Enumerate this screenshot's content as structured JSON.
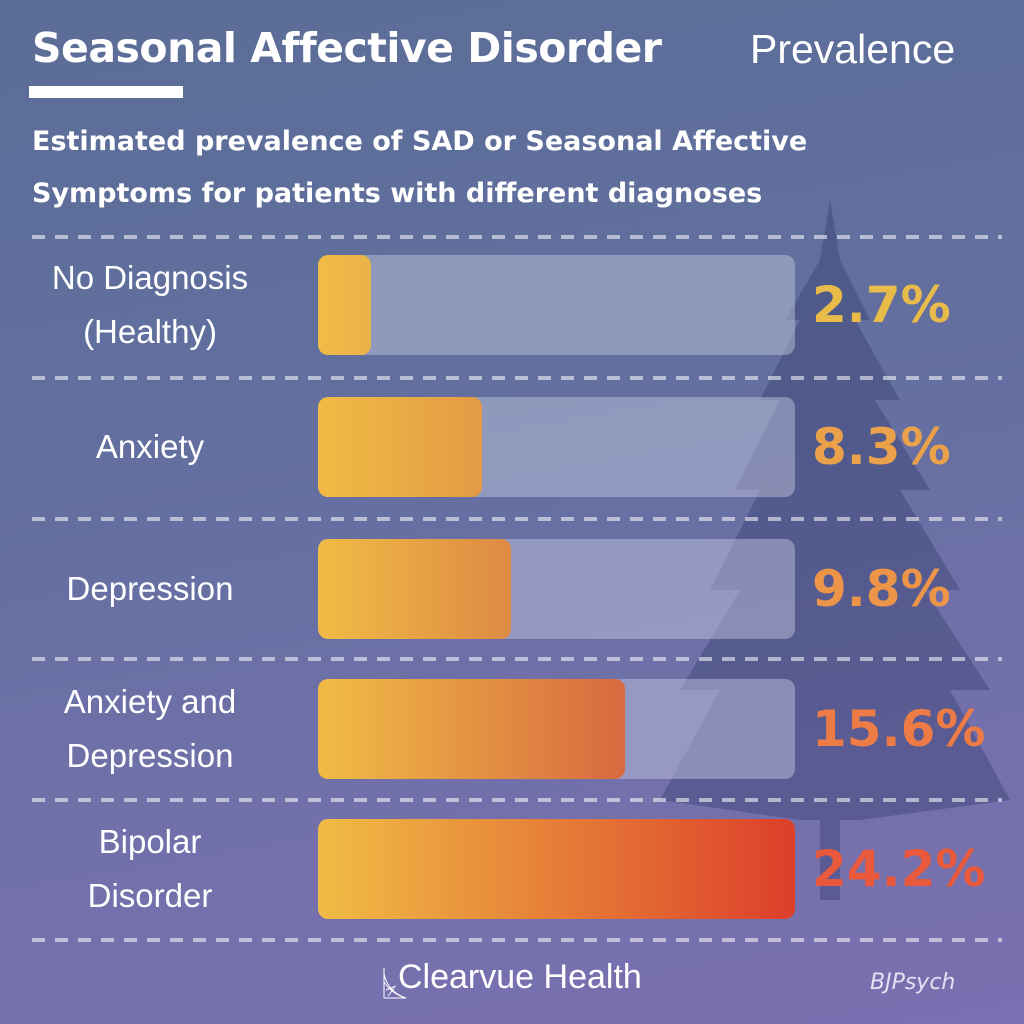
{
  "header": {
    "title": "Seasonal Affective Disorder",
    "title_right": "Prevalence",
    "subtitle": "Estimated prevalence of SAD or Seasonal Affective Symptoms for patients with different diagnoses"
  },
  "chart_data": {
    "type": "bar",
    "orientation": "horizontal",
    "title": "Estimated prevalence of SAD or Seasonal Affective Symptoms for patients with different diagnoses",
    "categories": [
      "No Diagnosis (Healthy)",
      "Anxiety",
      "Depression",
      "Anxiety and Depression",
      "Bipolar Disorder"
    ],
    "label_lines": [
      [
        "No Diagnosis",
        "(Healthy)"
      ],
      [
        "Anxiety"
      ],
      [
        "Depression"
      ],
      [
        "Anxiety and",
        "Depression"
      ],
      [
        "Bipolar",
        "Disorder"
      ]
    ],
    "values": [
      2.7,
      8.3,
      9.8,
      15.6,
      24.2
    ],
    "value_labels": [
      "2.7%",
      "8.3%",
      "9.8%",
      "15.6%",
      "24.2%"
    ],
    "value_colors": [
      "#e8bb4a",
      "#eba14a",
      "#ec9548",
      "#ec7b45",
      "#e85a3b"
    ],
    "bar_end_colors": [
      "#eab24a",
      "#e39a45",
      "#de8a44",
      "#d86a40",
      "#dc3f2a"
    ],
    "bar_start_color": "#f0bc45",
    "xlim": [
      0,
      24.2
    ],
    "grid": false,
    "legend": "none"
  },
  "footer": {
    "brand": "Clearvue Health",
    "source": "BJPsych"
  }
}
